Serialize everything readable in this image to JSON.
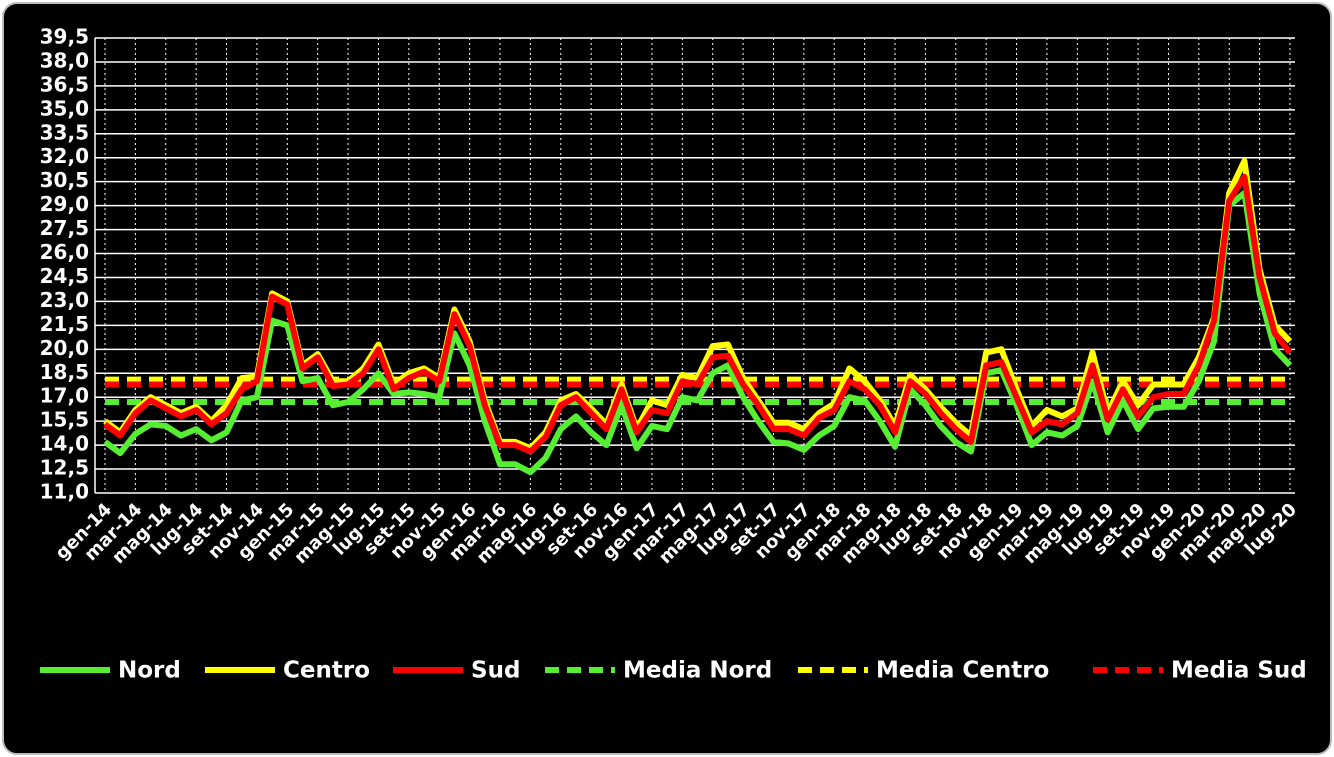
{
  "chart_data": {
    "type": "line",
    "categories": [
      "gen-14",
      null,
      "mar-14",
      null,
      "mag-14",
      null,
      "lug-14",
      null,
      "set-14",
      null,
      "nov-14",
      null,
      "gen-15",
      null,
      "mar-15",
      null,
      "mag-15",
      null,
      "lug-15",
      null,
      "set-15",
      null,
      "nov-15",
      null,
      "gen-16",
      null,
      "mar-16",
      null,
      "mag-16",
      null,
      "lug-16",
      null,
      "set-16",
      null,
      "nov-16",
      null,
      "gen-17",
      null,
      "mar-17",
      null,
      "mag-17",
      null,
      "lug-17",
      null,
      "set-17",
      null,
      "nov-17",
      null,
      "gen-18",
      null,
      "mar-18",
      null,
      "mag-18",
      null,
      "lug-18",
      null,
      "set-18",
      null,
      "nov-18",
      null,
      "gen-19",
      null,
      "mar-19",
      null,
      "mag-19",
      null,
      "lug-19",
      null,
      "set-19",
      null,
      "nov-19",
      null,
      "gen-20",
      null,
      "mar-20",
      null,
      "mag-20",
      null,
      "lug-20"
    ],
    "series": [
      {
        "name": "Nord",
        "color": "#55ee33",
        "values": [
          14.2,
          13.5,
          14.7,
          15.3,
          15.2,
          14.6,
          15.0,
          14.3,
          14.8,
          16.8,
          17.0,
          21.8,
          21.5,
          18.0,
          18.2,
          16.5,
          16.7,
          17.5,
          18.5,
          17.2,
          17.3,
          17.2,
          17.0,
          21.0,
          19.0,
          15.5,
          12.8,
          12.8,
          12.3,
          13.2,
          15.0,
          15.8,
          14.8,
          14.0,
          16.5,
          13.8,
          15.2,
          15.0,
          17.0,
          16.8,
          18.5,
          19.0,
          17.0,
          15.5,
          14.2,
          14.1,
          13.7,
          14.6,
          15.2,
          17.0,
          16.8,
          15.5,
          13.9,
          17.5,
          16.5,
          15.2,
          14.2,
          13.6,
          18.5,
          18.7,
          16.5,
          14.0,
          14.8,
          14.6,
          15.2,
          18.0,
          14.8,
          16.8,
          15.0,
          16.3,
          16.4,
          16.4,
          18.0,
          20.5,
          29.0,
          29.8,
          23.5,
          20.0,
          19.0
        ]
      },
      {
        "name": "Centro",
        "color": "#ffff00",
        "values": [
          15.5,
          14.8,
          16.2,
          17.0,
          16.5,
          16.0,
          16.4,
          15.5,
          16.5,
          18.2,
          18.3,
          23.5,
          23.0,
          19.0,
          19.7,
          18.0,
          18.0,
          18.8,
          20.3,
          17.8,
          18.5,
          18.8,
          18.2,
          22.5,
          20.5,
          16.8,
          14.2,
          14.2,
          13.8,
          14.8,
          16.8,
          17.2,
          16.3,
          15.3,
          17.8,
          15.0,
          16.8,
          16.5,
          18.4,
          18.2,
          20.2,
          20.3,
          18.2,
          16.8,
          15.4,
          15.4,
          15.0,
          16.0,
          16.6,
          18.8,
          18.0,
          16.8,
          15.2,
          18.4,
          17.5,
          16.4,
          15.4,
          14.6,
          19.8,
          20.0,
          17.5,
          15.2,
          16.2,
          15.8,
          16.3,
          19.8,
          16.0,
          18.0,
          16.5,
          17.8,
          17.8,
          17.8,
          19.5,
          22.0,
          29.8,
          31.8,
          25.0,
          21.5,
          20.5
        ]
      },
      {
        "name": "Sud",
        "color": "#ff0000",
        "values": [
          15.3,
          14.6,
          16.0,
          16.8,
          16.3,
          15.8,
          16.2,
          15.3,
          16.0,
          17.5,
          18.0,
          23.3,
          22.8,
          18.8,
          19.5,
          17.7,
          17.8,
          18.5,
          20.0,
          17.5,
          18.2,
          18.6,
          18.0,
          22.2,
          20.2,
          16.5,
          14.0,
          14.0,
          13.6,
          14.5,
          16.5,
          17.0,
          16.0,
          15.0,
          17.5,
          14.8,
          16.2,
          16.0,
          18.0,
          17.8,
          19.5,
          19.6,
          17.8,
          16.5,
          15.0,
          15.0,
          14.6,
          15.7,
          16.2,
          18.0,
          17.5,
          16.5,
          14.8,
          18.0,
          17.2,
          16.0,
          15.0,
          14.2,
          19.0,
          19.2,
          17.0,
          14.8,
          15.5,
          15.3,
          16.0,
          19.0,
          15.6,
          17.5,
          15.8,
          17.0,
          17.2,
          17.2,
          19.0,
          21.8,
          29.3,
          30.8,
          24.5,
          21.0,
          19.8
        ]
      },
      {
        "name": "Media Nord",
        "color": "#55ee33",
        "dashed": true,
        "value": 16.7
      },
      {
        "name": "Media Centro",
        "color": "#ffff00",
        "dashed": true,
        "value": 18.1
      },
      {
        "name": "Media Sud",
        "color": "#ff0000",
        "dashed": true,
        "value": 17.8
      }
    ],
    "ylim": [
      11,
      39.5
    ],
    "yticks": [
      {
        "value": 11,
        "label": "11,0"
      },
      {
        "value": 12.5,
        "label": "12,5"
      },
      {
        "value": 14,
        "label": "14,0"
      },
      {
        "value": 15.5,
        "label": "15,5"
      },
      {
        "value": 17,
        "label": "17,0"
      },
      {
        "value": 18.5,
        "label": "18,5"
      },
      {
        "value": 20,
        "label": "20,0"
      },
      {
        "value": 21.5,
        "label": "21,5"
      },
      {
        "value": 23,
        "label": "23,0"
      },
      {
        "value": 24.5,
        "label": "24,5"
      },
      {
        "value": 26,
        "label": "26,0"
      },
      {
        "value": 27.5,
        "label": "27,5"
      },
      {
        "value": 29,
        "label": "29,0"
      },
      {
        "value": 30.5,
        "label": "30,5"
      },
      {
        "value": 32,
        "label": "32,0"
      },
      {
        "value": 33.5,
        "label": "33,5"
      },
      {
        "value": 35,
        "label": "35,0"
      },
      {
        "value": 36.5,
        "label": "36,5"
      },
      {
        "value": 38,
        "label": "38,0"
      },
      {
        "value": 39.5,
        "label": "39,5"
      }
    ],
    "grid": true,
    "legend": "bottom"
  }
}
